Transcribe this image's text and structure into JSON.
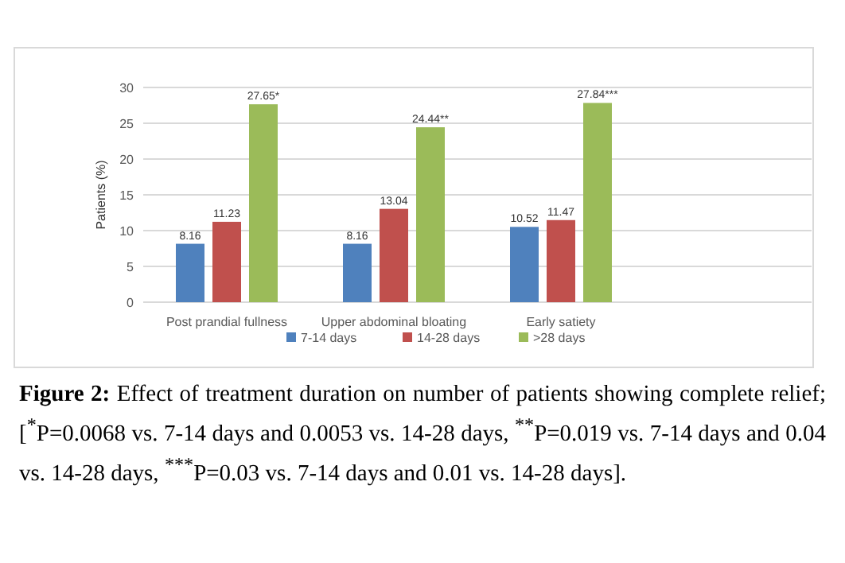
{
  "chart_data": {
    "type": "bar",
    "ylabel": "Patients (%)",
    "categories": [
      "Post prandial fullness",
      "Upper abdominal bloating",
      "Early satiety",
      null
    ],
    "series": [
      {
        "name": "7-14 days",
        "color": "#4f81bd",
        "values": [
          8.16,
          8.16,
          10.52,
          null
        ],
        "value_labels": [
          "8.16",
          "8.16",
          "10.52",
          null
        ]
      },
      {
        "name": "14-28 days",
        "color": "#c0504d",
        "values": [
          11.23,
          13.04,
          11.47,
          null
        ],
        "value_labels": [
          "11.23",
          "13.04",
          "11.47",
          null
        ]
      },
      {
        "name": ">28 days",
        "color": "#9bbb59",
        "values": [
          27.65,
          24.44,
          27.84,
          null
        ],
        "value_labels": [
          "27.65*",
          "24.44**",
          "27.84***",
          null
        ]
      }
    ],
    "ylim": [
      0,
      30
    ],
    "yticks": [
      0,
      5,
      10,
      15,
      20,
      25,
      30
    ],
    "grid": "y",
    "legend": "bottom",
    "annotations": [
      "Figure 2: Effect of treatment duration on number of patients showing complete relief; [$^{*}$P=0.0068 vs. 7-14 days and 0.0053 vs. 14-28 days, $^{**}$P=0.019 vs. 7-14 days and 0.04 vs. 14-28 days, $^{***}$P=0.03 vs. 7-14 days and 0.01 vs. 14-28 days]."
    ]
  }
}
